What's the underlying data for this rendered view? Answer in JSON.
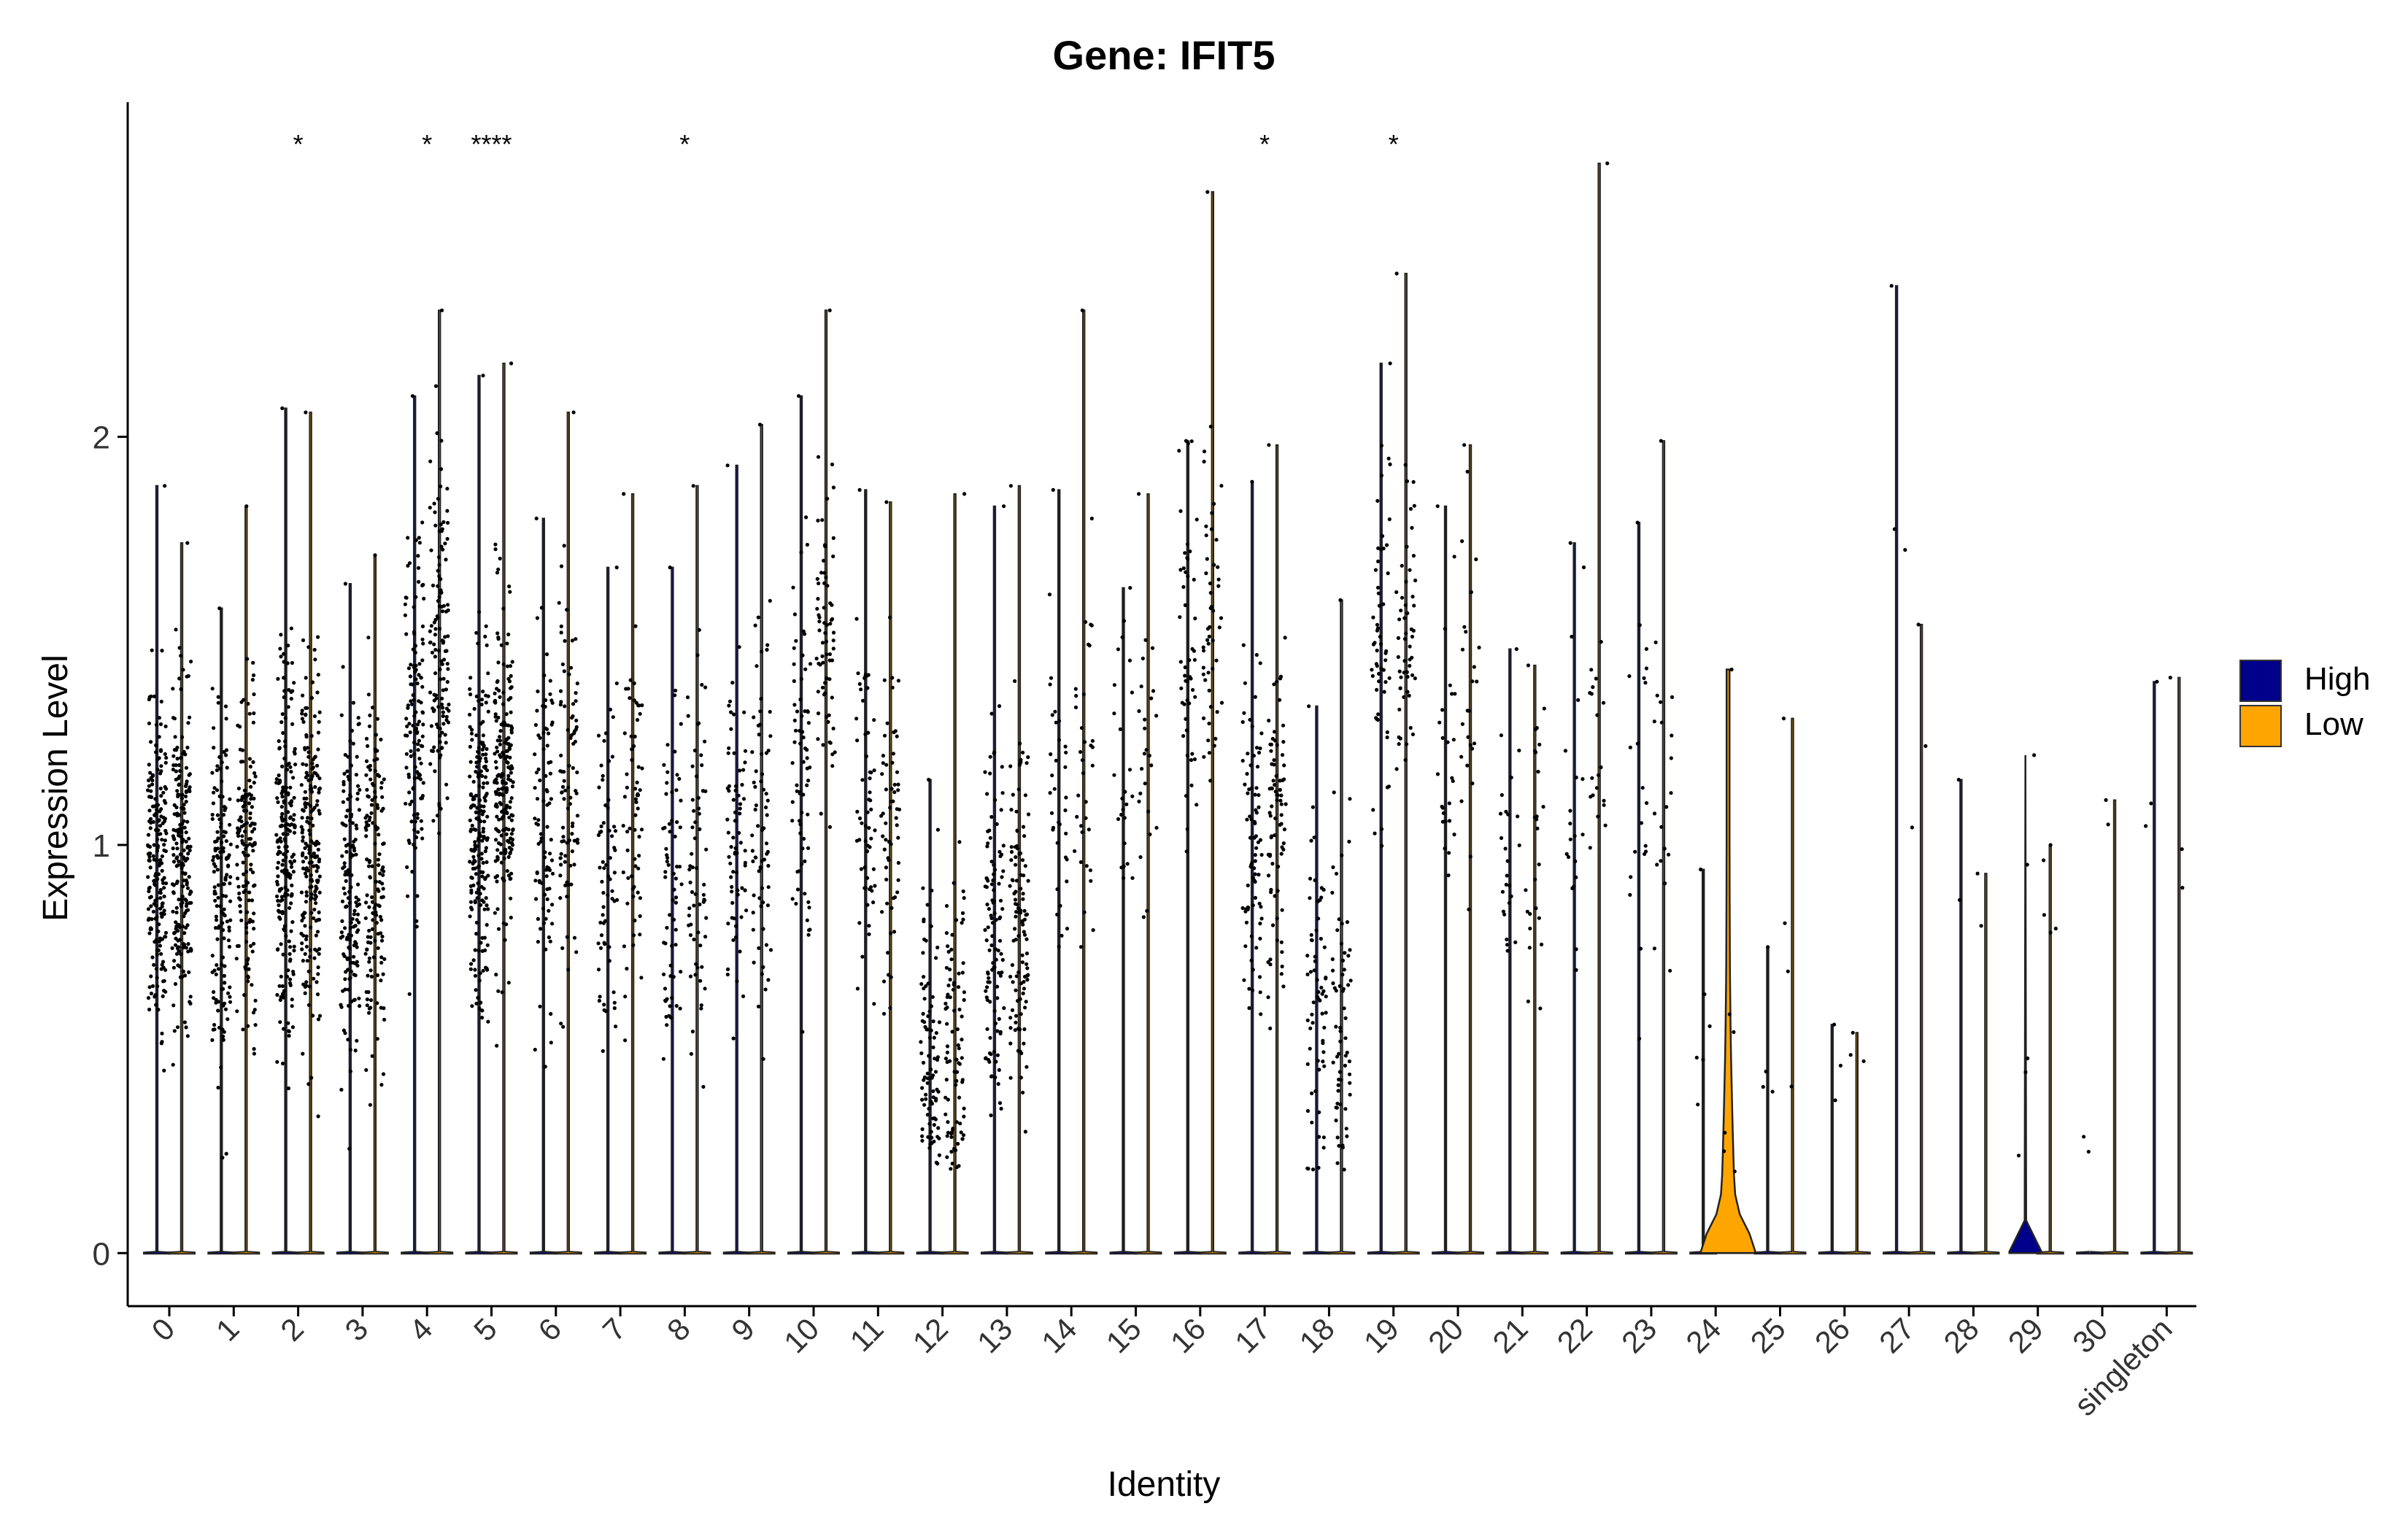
{
  "chart_data": {
    "type": "violin",
    "title": "Gene: IFIT5",
    "xlabel": "Identity",
    "ylabel": "Expression Level",
    "ylim": [
      -0.13,
      2.82
    ],
    "yticks": [
      0,
      1,
      2
    ],
    "categories": [
      "0",
      "1",
      "2",
      "3",
      "4",
      "5",
      "6",
      "7",
      "8",
      "9",
      "10",
      "11",
      "12",
      "13",
      "14",
      "15",
      "16",
      "17",
      "18",
      "19",
      "20",
      "21",
      "22",
      "23",
      "24",
      "25",
      "26",
      "27",
      "28",
      "29",
      "30",
      "singleton"
    ],
    "significance": [
      "",
      "",
      "*",
      "",
      "*",
      "****",
      "",
      "",
      "*",
      "",
      "",
      "",
      "",
      "",
      "",
      "",
      "",
      "*",
      "",
      "*",
      "",
      "",
      "",
      "",
      "",
      "",
      "",
      "",
      "",
      "",
      "",
      ""
    ],
    "legend": {
      "position": "right",
      "items": [
        {
          "name": "High",
          "color": "#00008b"
        },
        {
          "name": "Low",
          "color": "#ffa500"
        }
      ]
    },
    "series": [
      {
        "name": "High",
        "color": "#00008b",
        "max": [
          1.88,
          1.58,
          2.07,
          1.64,
          2.1,
          2.15,
          1.8,
          1.68,
          1.68,
          1.93,
          2.1,
          1.87,
          1.16,
          1.83,
          1.87,
          1.63,
          1.99,
          1.89,
          1.34,
          2.18,
          1.83,
          1.48,
          1.74,
          1.79,
          0.94,
          0.75,
          0.56,
          2.37,
          1.16,
          1.22,
          0.0,
          1.4
        ],
        "mean": [
          0.95,
          0.9,
          0.97,
          0.9,
          1.3,
          1.05,
          1.05,
          0.98,
          0.92,
          1.05,
          1.15,
          1.1,
          0.5,
          0.8,
          1.15,
          1.1,
          1.45,
          1.0,
          0.6,
          1.5,
          1.15,
          0.95,
          1.1,
          1.1,
          0.55,
          0.55,
          0.45,
          1.5,
          0.9,
          0.6,
          0.0,
          1.1
        ],
        "zero_fraction": [
          0.55,
          0.6,
          0.55,
          0.6,
          0.45,
          0.5,
          0.6,
          0.65,
          0.65,
          0.65,
          0.65,
          0.7,
          0.7,
          0.7,
          0.75,
          0.75,
          0.7,
          0.7,
          0.75,
          0.7,
          0.8,
          0.85,
          0.85,
          0.85,
          0.9,
          0.95,
          0.95,
          0.9,
          0.95,
          0.78,
          1.0,
          0.9
        ]
      },
      {
        "name": "Low",
        "color": "#ffa500",
        "max": [
          1.74,
          1.83,
          2.06,
          1.71,
          2.31,
          2.18,
          2.06,
          1.86,
          1.88,
          2.03,
          2.31,
          1.84,
          1.86,
          1.88,
          2.31,
          1.86,
          2.6,
          1.98,
          1.6,
          2.4,
          1.98,
          1.44,
          2.67,
          1.99,
          1.43,
          1.31,
          0.54,
          1.54,
          0.93,
          1.0,
          1.11,
          1.41
        ],
        "mean": [
          0.98,
          1.0,
          1.0,
          0.95,
          1.45,
          1.15,
          1.15,
          1.05,
          1.0,
          1.05,
          1.45,
          1.1,
          0.55,
          0.8,
          1.25,
          1.15,
          1.6,
          1.05,
          0.6,
          1.45,
          1.35,
          1.0,
          1.25,
          1.05,
          0.2,
          0.7,
          0.45,
          1.3,
          0.8,
          0.8,
          1.0,
          1.05
        ],
        "zero_fraction": [
          0.55,
          0.55,
          0.55,
          0.6,
          0.45,
          0.45,
          0.6,
          0.65,
          0.65,
          0.65,
          0.6,
          0.7,
          0.7,
          0.7,
          0.75,
          0.75,
          0.65,
          0.7,
          0.75,
          0.65,
          0.75,
          0.85,
          0.8,
          0.85,
          0.75,
          0.95,
          0.95,
          0.95,
          0.95,
          0.95,
          0.9,
          0.9
        ]
      }
    ],
    "point_counts": [
      420,
      300,
      420,
      300,
      260,
      420,
      180,
      130,
      130,
      140,
      140,
      120,
      180,
      220,
      70,
      50,
      100,
      160,
      130,
      110,
      50,
      50,
      40,
      40,
      12,
      8,
      5,
      5,
      4,
      10,
      3,
      6
    ]
  }
}
